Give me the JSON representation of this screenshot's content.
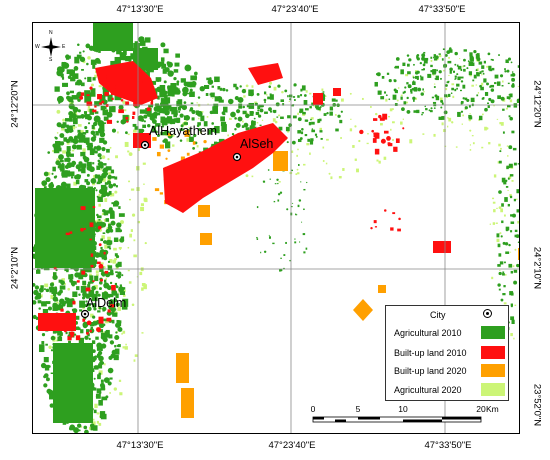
{
  "map": {
    "coord_labels": {
      "top": [
        "47°13'30\"E",
        "47°23'40\"E",
        "47°33'50\"E"
      ],
      "bottom": [
        "47°13'30\"E",
        "47°23'40\"E",
        "47°33'50\"E"
      ],
      "left": [
        "24°12'20\"N",
        "24°2'10\"N"
      ],
      "right": [
        "24°12'20\"N",
        "24°2'10\"N",
        "23°52'0\"N"
      ]
    },
    "cities": [
      {
        "name": "AlHayathem"
      },
      {
        "name": "AlSeh"
      },
      {
        "name": "AlDelm"
      }
    ],
    "north_arrow": {
      "n": "N",
      "s": "S",
      "e": "E",
      "w": "W",
      "icon": "north-arrow-icon"
    },
    "legend": {
      "title": "City",
      "items": [
        {
          "label": "Agricultural 2010",
          "color": "#2e9f1f"
        },
        {
          "label": "Built-up land 2010",
          "color": "#ff1010"
        },
        {
          "label": "Built-up land 2020",
          "color": "#ffa000"
        },
        {
          "label": "Agricultural 2020",
          "color": "#ccf577"
        }
      ]
    },
    "scale_bar": {
      "ticks": [
        "0",
        "5",
        "10",
        "20"
      ],
      "unit": "Km"
    }
  }
}
